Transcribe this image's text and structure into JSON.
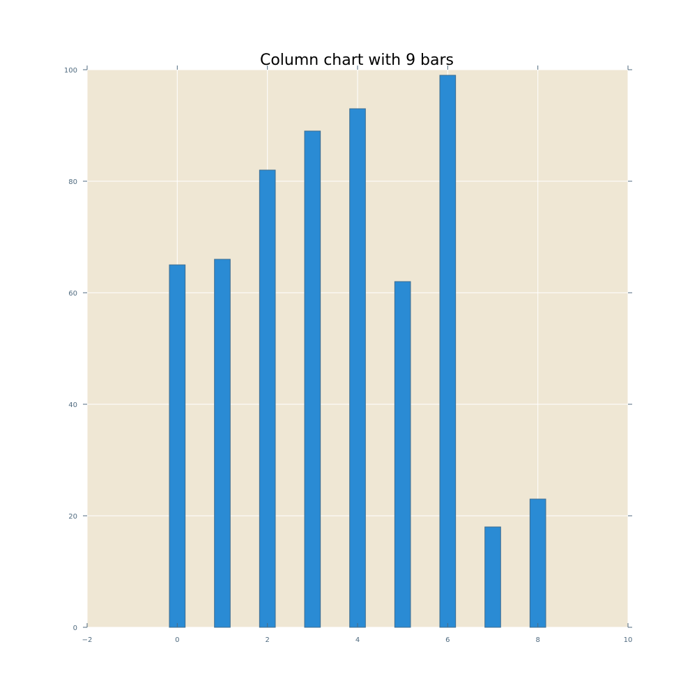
{
  "chart_data": {
    "type": "bar",
    "title": "Column chart with 9 bars",
    "xlabel": "",
    "ylabel": "",
    "x": [
      0,
      1,
      2,
      3,
      4,
      5,
      6,
      7,
      8
    ],
    "values": [
      65,
      66,
      82,
      89,
      93,
      62,
      99,
      18,
      23
    ],
    "bar_width": 0.35,
    "xlim": [
      -2,
      10
    ],
    "ylim": [
      0,
      100
    ],
    "xticks": [
      -2,
      0,
      2,
      4,
      6,
      8,
      10
    ],
    "xtick_labels": [
      "−2",
      "0",
      "2",
      "4",
      "6",
      "8",
      "10"
    ],
    "yticks": [
      0,
      20,
      40,
      60,
      80,
      100
    ],
    "ytick_labels": [
      "0",
      "20",
      "40",
      "60",
      "80",
      "100"
    ],
    "grid": true,
    "legend": "none",
    "colors": {
      "bar": "#2a8bd4",
      "plot_background": "#efe7d4",
      "grid": "#ffffff"
    }
  }
}
